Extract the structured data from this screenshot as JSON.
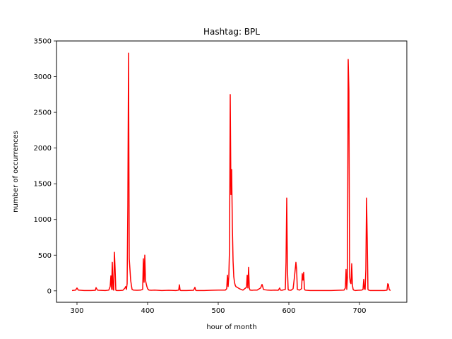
{
  "chart_data": {
    "type": "line",
    "title": "Hashtag: BPL",
    "xlabel": "hour of month",
    "ylabel": "number of occurrences",
    "xlim": [
      271,
      767
    ],
    "ylim": [
      -160,
      3500
    ],
    "xticks": [
      300,
      400,
      500,
      600,
      700
    ],
    "yticks": [
      0,
      500,
      1000,
      1500,
      2000,
      2500,
      3000,
      3500
    ],
    "grid": false,
    "series": [
      {
        "color": "#ff0000",
        "x": [
          293,
          296,
          298,
          300,
          302,
          310,
          320,
          326,
          327,
          329,
          331,
          340,
          345,
          347,
          348,
          349,
          350,
          351,
          352,
          353,
          354,
          355,
          356,
          357,
          360,
          365,
          368,
          369,
          370,
          371,
          372,
          373,
          374,
          375,
          376,
          377,
          378,
          380,
          385,
          390,
          393,
          394,
          395,
          396,
          397,
          398,
          399,
          400,
          401,
          402,
          405,
          410,
          420,
          430,
          440,
          444,
          445,
          446,
          447,
          448,
          455,
          465,
          467,
          468,
          469,
          470,
          480,
          490,
          500,
          510,
          512,
          513,
          514,
          515,
          516,
          517,
          518,
          519,
          520,
          521,
          522,
          523,
          524,
          525,
          530,
          535,
          540,
          541,
          542,
          543,
          544,
          545,
          548,
          550,
          555,
          560,
          562,
          563,
          564,
          566,
          570,
          575,
          580,
          585,
          587,
          588,
          590,
          595,
          596,
          597,
          598,
          599,
          600,
          603,
          606,
          608,
          610,
          611,
          612,
          615,
          618,
          619,
          620,
          621,
          622,
          623,
          625,
          630,
          640,
          650,
          660,
          670,
          678,
          680,
          681,
          682,
          683,
          684,
          685,
          686,
          687,
          688,
          689,
          690,
          691,
          692,
          694,
          698,
          703,
          705,
          706,
          707,
          708,
          709,
          710,
          711,
          712,
          713,
          715,
          720,
          730,
          735,
          738,
          739,
          740,
          741,
          742,
          743,
          744
        ],
        "y": [
          5,
          8,
          10,
          40,
          10,
          5,
          5,
          8,
          45,
          10,
          8,
          5,
          10,
          60,
          210,
          20,
          400,
          20,
          10,
          540,
          300,
          10,
          5,
          5,
          5,
          8,
          40,
          60,
          20,
          100,
          1200,
          3330,
          450,
          300,
          150,
          80,
          20,
          10,
          8,
          10,
          20,
          450,
          120,
          500,
          150,
          100,
          60,
          30,
          20,
          10,
          8,
          10,
          5,
          8,
          5,
          10,
          85,
          10,
          5,
          5,
          5,
          8,
          50,
          10,
          5,
          5,
          5,
          8,
          10,
          10,
          30,
          220,
          60,
          200,
          600,
          2750,
          1350,
          1700,
          900,
          420,
          200,
          120,
          80,
          60,
          30,
          10,
          50,
          220,
          40,
          330,
          40,
          10,
          8,
          10,
          10,
          40,
          90,
          60,
          20,
          15,
          10,
          8,
          10,
          8,
          40,
          10,
          8,
          20,
          400,
          1300,
          300,
          20,
          10,
          8,
          30,
          200,
          400,
          300,
          20,
          10,
          30,
          240,
          150,
          260,
          30,
          10,
          8,
          5,
          5,
          5,
          5,
          8,
          10,
          40,
          300,
          20,
          200,
          3240,
          2800,
          200,
          120,
          100,
          380,
          80,
          20,
          10,
          5,
          8,
          10,
          20,
          160,
          30,
          20,
          300,
          1300,
          700,
          20,
          10,
          5,
          5,
          5,
          5,
          8,
          10,
          100,
          90,
          20,
          10,
          5
        ]
      }
    ]
  }
}
